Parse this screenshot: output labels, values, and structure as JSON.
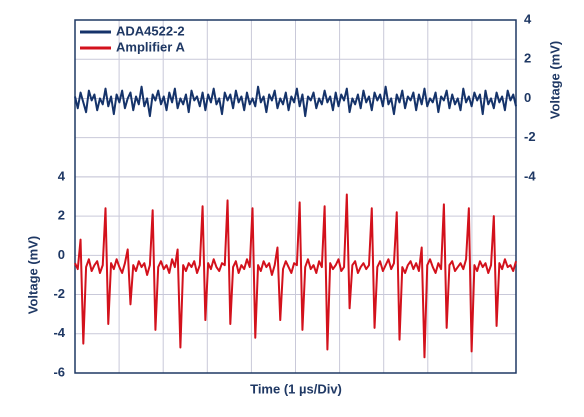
{
  "chart_data": {
    "type": "line",
    "xlabel": "Time (1 µs/Div)",
    "ylabel": "Voltage (mV)",
    "y2label": "Voltage (mV)",
    "ylim": [
      -6,
      12
    ],
    "yticks": [
      -6,
      -4,
      -2,
      0,
      2,
      4
    ],
    "y2lim": [
      -14,
      4
    ],
    "y2ticks": [
      -4,
      -2,
      0,
      2,
      4
    ],
    "grid": true,
    "legend": "upper left",
    "series": [
      {
        "name": "ADA4522-2",
        "color": "#15336a",
        "axis": "y2",
        "values": [
          0.1,
          -0.5,
          0.3,
          -0.2,
          -0.7,
          0.4,
          -0.1,
          0.2,
          -0.6,
          0.0,
          -0.3,
          0.5,
          -0.4,
          0.1,
          -0.8,
          0.2,
          -0.2,
          0.4,
          -0.5,
          0.0,
          0.3,
          -0.6,
          0.1,
          -0.3,
          0.6,
          -0.4,
          0.0,
          -0.9,
          0.2,
          -0.1,
          0.4,
          -0.3,
          0.1,
          -0.6,
          0.3,
          -0.2,
          0.5,
          -0.5,
          0.0,
          -0.3,
          0.2,
          -0.7,
          0.4,
          -0.1,
          0.1,
          -0.4,
          0.3,
          -0.6,
          0.2,
          -0.2,
          0.5,
          -0.3,
          0.0,
          -0.8,
          0.3,
          -0.1,
          0.2,
          -0.5,
          0.4,
          -0.2,
          0.1,
          -0.6,
          0.3,
          -0.3,
          0.0,
          -0.4,
          0.6,
          -0.2,
          0.1,
          -0.7,
          0.2,
          -0.1,
          0.4,
          -0.5,
          0.0,
          -0.3,
          0.3,
          -0.6,
          0.1,
          -0.2,
          0.5,
          -0.4,
          0.2,
          -0.9,
          0.1,
          -0.1,
          0.3,
          -0.5,
          0.0,
          -0.3,
          0.4,
          -0.2,
          0.1,
          -0.6,
          0.3,
          -0.4,
          0.2,
          -0.1,
          0.5,
          -0.7,
          0.0,
          -0.3,
          0.2,
          -0.5,
          0.4,
          -0.2,
          0.1,
          -0.6,
          0.3,
          -0.1,
          0.2,
          -0.4,
          0.6,
          -0.3,
          0.0,
          -0.8,
          0.2,
          -0.2,
          0.4,
          -0.5,
          0.1,
          -0.1,
          0.3,
          -0.6,
          0.2,
          -0.3,
          0.5,
          -0.4,
          0.0,
          -0.2,
          0.3,
          -0.7,
          0.1,
          -0.1,
          0.4,
          -0.5,
          0.2,
          -0.3,
          0.0,
          -0.6,
          0.5,
          -0.2,
          0.1,
          -0.4,
          0.3,
          -0.1,
          0.2,
          -0.8,
          0.4,
          -0.3,
          0.0,
          -0.5,
          0.3,
          -0.2,
          0.1,
          -0.6,
          0.4,
          -0.1,
          0.2,
          -0.4
        ]
      },
      {
        "name": "Amplifier A",
        "color": "#d3111c",
        "axis": "y",
        "values": [
          -0.4,
          -0.7,
          0.8,
          -4.5,
          -0.6,
          -0.2,
          -0.8,
          -0.5,
          -0.3,
          -0.9,
          -0.5,
          2.4,
          -3.5,
          -0.4,
          -0.7,
          -0.2,
          -0.6,
          -0.9,
          -0.4,
          0.3,
          -2.5,
          -0.5,
          -0.8,
          -0.3,
          -0.6,
          -0.4,
          -1.0,
          -0.5,
          2.3,
          -3.8,
          -0.6,
          -0.3,
          -0.7,
          -0.5,
          -0.9,
          -0.2,
          -0.6,
          0.3,
          -4.7,
          -0.5,
          -0.8,
          -0.4,
          -0.6,
          -0.3,
          -0.9,
          -0.5,
          2.5,
          -3.3,
          -0.4,
          -0.7,
          -0.2,
          -0.6,
          -0.8,
          -0.4,
          -0.5,
          2.8,
          -3.5,
          -0.6,
          -0.3,
          -0.9,
          -0.5,
          -0.7,
          -0.2,
          -0.6,
          2.4,
          -4.2,
          -0.5,
          -0.8,
          -0.3,
          -0.6,
          -0.4,
          -1.0,
          -0.5,
          0.4,
          -3.3,
          -0.7,
          -0.3,
          -0.6,
          -0.9,
          -0.4,
          -0.5,
          2.7,
          -3.8,
          -0.6,
          -0.2,
          -0.7,
          -0.5,
          -0.9,
          -0.3,
          -0.6,
          2.5,
          -4.8,
          -0.4,
          -0.7,
          -0.5,
          -0.2,
          -0.8,
          -0.6,
          3.1,
          -2.7,
          -0.5,
          -0.3,
          -0.9,
          -0.6,
          -0.4,
          -0.7,
          -0.5,
          2.4,
          -3.7,
          -0.6,
          -0.3,
          -0.8,
          -0.5,
          -0.2,
          -0.7,
          -0.4,
          2.2,
          -4.3,
          -0.6,
          -0.9,
          -0.5,
          -0.3,
          -0.7,
          -0.4,
          -0.8,
          0.4,
          -5.2,
          -0.5,
          -0.2,
          -0.6,
          -0.9,
          -0.4,
          -0.7,
          2.6,
          -3.7,
          -0.5,
          -0.3,
          -0.8,
          -0.6,
          -0.4,
          -0.7,
          -0.2,
          2.4,
          -4.9,
          -0.5,
          -0.8,
          -0.3,
          -0.6,
          -0.4,
          -0.9,
          -0.5,
          2.0,
          -3.6,
          -0.4,
          -0.7,
          -0.2,
          -0.6,
          -0.5,
          -0.8,
          -0.3
        ]
      }
    ]
  }
}
